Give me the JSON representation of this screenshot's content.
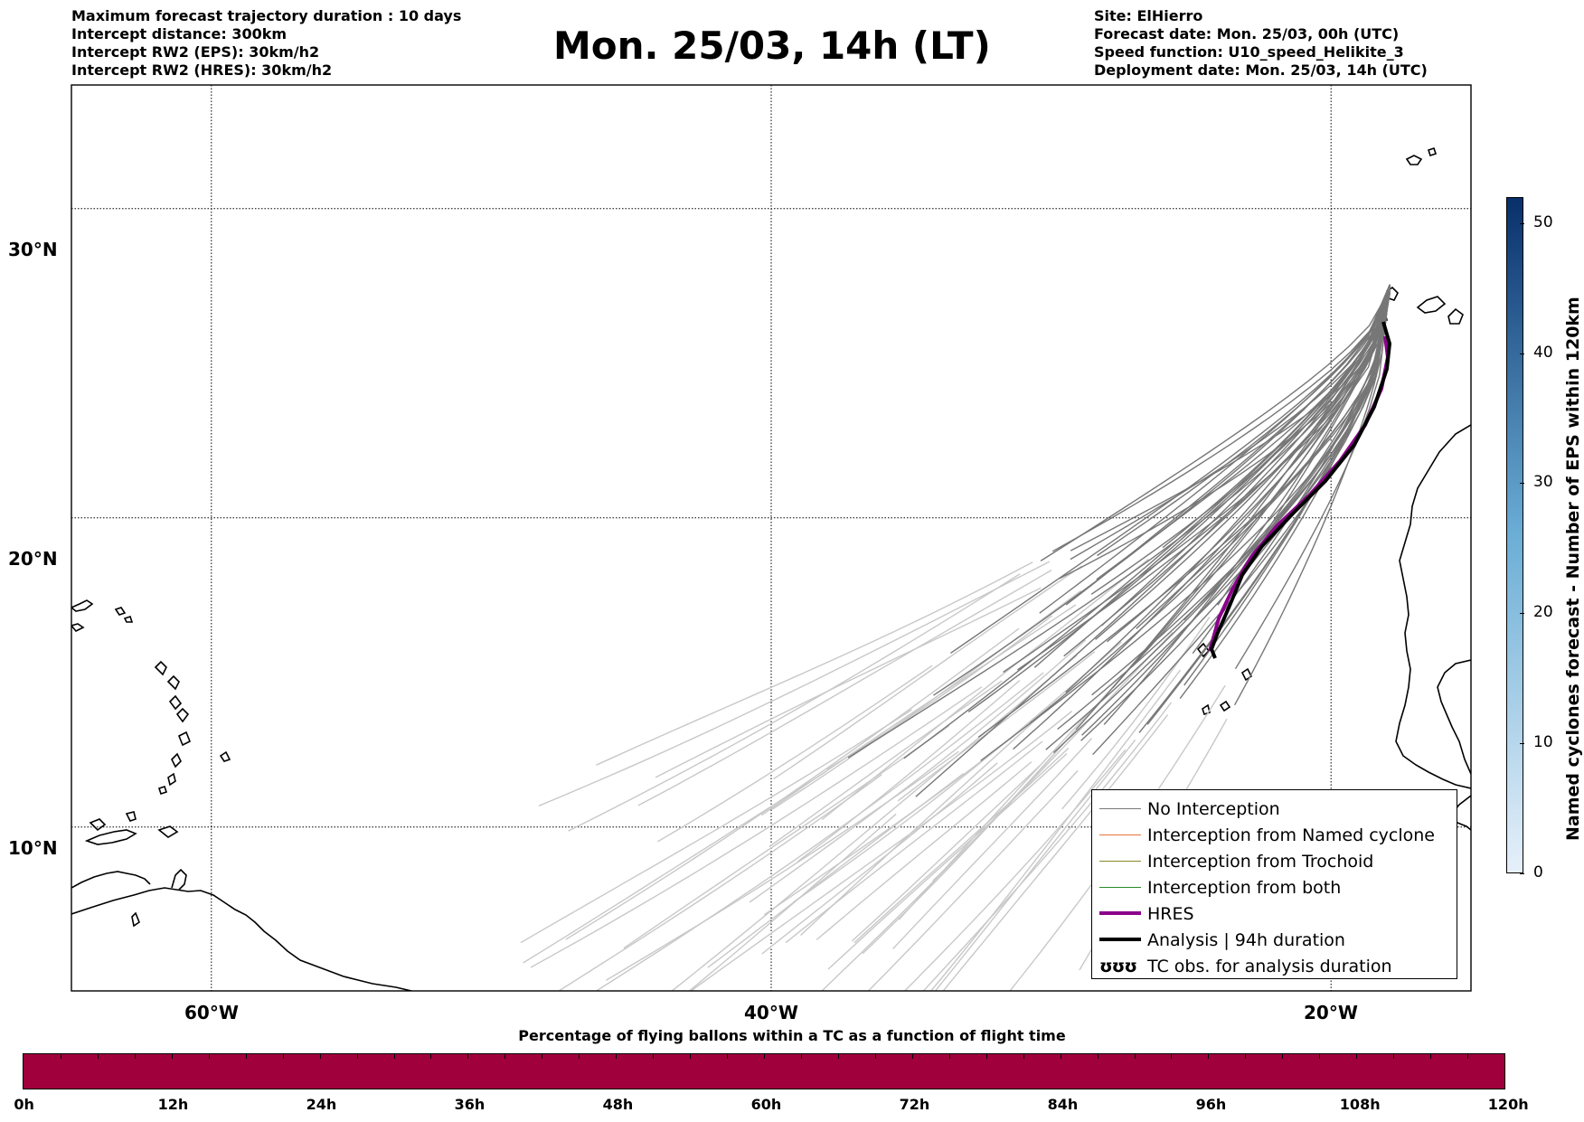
{
  "header": {
    "left_lines": [
      "Maximum forecast trajectory duration : 10 days",
      "Intercept distance: 300km",
      "Intercept RW2 (EPS):  30km/h2",
      "Intercept RW2 (HRES): 30km/h2"
    ],
    "title": "Mon. 25/03, 14h (LT)",
    "right_lines": [
      "Site: ElHierro",
      "Forecast date: Mon. 25/03, 00h (UTC)",
      "Speed function: U10_speed_Helikite_3",
      "Deployment date: Mon. 25/03, 14h (UTC)"
    ]
  },
  "map": {
    "lat_labels": [
      "30°N",
      "20°N",
      "10°N"
    ],
    "lon_labels": [
      "60°W",
      "40°W",
      "20°W"
    ],
    "lon_range": [
      -65,
      -15
    ],
    "lat_range": [
      4.7,
      34
    ]
  },
  "legend": {
    "items": [
      {
        "label": "No Interception",
        "color": "#777777"
      },
      {
        "label": "Interception from Named cyclone",
        "color": "#e8743b"
      },
      {
        "label": "Interception from Trochoid",
        "color": "#8a8a2a"
      },
      {
        "label": "Interception from both",
        "color": "#2a8a2a"
      },
      {
        "label": "HRES",
        "color": "#8b008b"
      },
      {
        "label": "Analysis | 94h duration",
        "color": "#000000"
      },
      {
        "label": "TC obs. for analysis duration",
        "color": "#000000",
        "symbol": "ʊʊʊ"
      }
    ]
  },
  "timebar": {
    "title": "Percentage of flying ballons within a TC as a function of flight time",
    "ticks": [
      "0h",
      "12h",
      "24h",
      "36h",
      "48h",
      "60h",
      "72h",
      "84h",
      "96h",
      "108h",
      "120h"
    ],
    "color": "#a0003c",
    "percentage_in_tc": 0
  },
  "colorbar": {
    "label": "Named cyclones forecast - Number of EPS within 120km",
    "ticks": [
      "0",
      "10",
      "20",
      "30",
      "40",
      "50"
    ],
    "range": [
      0,
      52
    ],
    "colors": [
      "#e6f0fa",
      "#08306b"
    ]
  }
}
